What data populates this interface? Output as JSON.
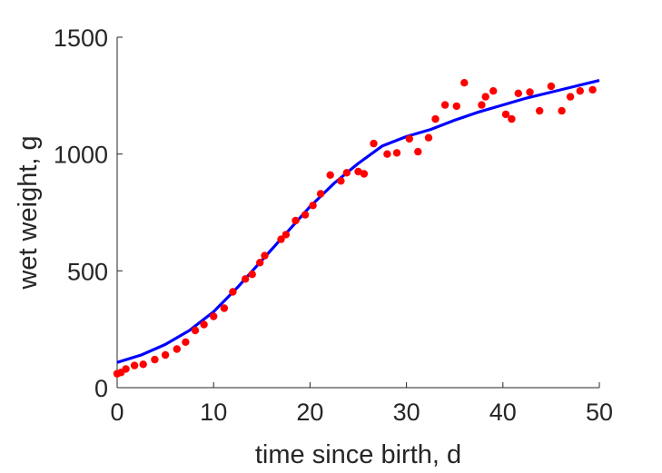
{
  "chart_data": {
    "type": "scatter",
    "title": "",
    "xlabel": "time since birth, d",
    "ylabel": "wet weight, g",
    "xlim": [
      0,
      50
    ],
    "ylim": [
      0,
      1500
    ],
    "xticks": [
      0,
      10,
      20,
      30,
      40,
      50
    ],
    "yticks": [
      0,
      500,
      1000,
      1500
    ],
    "grid": false,
    "legend": "none",
    "series": [
      {
        "kind": "scatter",
        "color": "#ff0000",
        "x": [
          0,
          0.4,
          0.9,
          1.8,
          2.7,
          3.9,
          5,
          6.2,
          7.1,
          8.1,
          9,
          10,
          11.1,
          12,
          13.3,
          14,
          14.8,
          15.3,
          17,
          17.5,
          18.5,
          19.5,
          20.3,
          21.1,
          22.1,
          23.2,
          23.8,
          25,
          25.6,
          26.6,
          28,
          29,
          30.3,
          31.2,
          32.3,
          33,
          34,
          35.2,
          36,
          37.8,
          38.2,
          39,
          40.3,
          40.9,
          41.6,
          42.8,
          43.8,
          45,
          46.1,
          47,
          48,
          49.3
        ],
        "y": [
          60,
          65,
          80,
          95,
          100,
          120,
          140,
          165,
          195,
          245,
          270,
          305,
          340,
          410,
          465,
          485,
          535,
          565,
          635,
          655,
          715,
          740,
          780,
          830,
          910,
          885,
          920,
          925,
          915,
          1045,
          1000,
          1005,
          1065,
          1010,
          1070,
          1150,
          1210,
          1205,
          1305,
          1210,
          1245,
          1270,
          1170,
          1150,
          1260,
          1265,
          1185,
          1290,
          1185,
          1245,
          1270,
          1275
        ]
      },
      {
        "kind": "line",
        "color": "#0000ff",
        "x": [
          0,
          2.5,
          5,
          7.5,
          10,
          12.5,
          15,
          17.5,
          20,
          22.5,
          25,
          27.5,
          30,
          32.5,
          35,
          37.5,
          40,
          42.5,
          45,
          47.5,
          50
        ],
        "y": [
          108,
          140,
          185,
          245,
          325,
          430,
          545,
          660,
          775,
          875,
          960,
          1035,
          1075,
          1105,
          1145,
          1180,
          1210,
          1240,
          1265,
          1290,
          1315
        ]
      }
    ]
  }
}
